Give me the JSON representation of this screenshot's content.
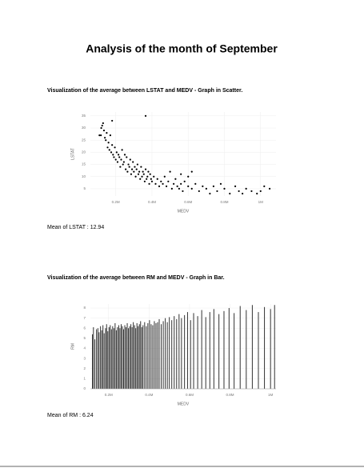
{
  "title": "Analysis of the month of September",
  "sections": [
    {
      "heading": "Visualization of the average between LSTAT and MEDV - Graph in Scatter.",
      "mean": "Mean of LSTAT : 12.94"
    },
    {
      "heading": "Visualization of the average between RM and MEDV - Graph in Bar.",
      "mean": "Mean of RM : 6.24"
    }
  ],
  "chart_data": [
    {
      "type": "scatter",
      "x_label": "MEDV",
      "y_label": "LSTAT",
      "color": "#000000",
      "x": [
        110000,
        120000,
        125000,
        130000,
        135000,
        140000,
        118000,
        145000,
        150000,
        155000,
        160000,
        165000,
        170000,
        175000,
        180000,
        185000,
        190000,
        195000,
        200000,
        205000,
        210000,
        215000,
        220000,
        225000,
        230000,
        235000,
        240000,
        245000,
        250000,
        255000,
        260000,
        265000,
        270000,
        275000,
        280000,
        285000,
        290000,
        295000,
        300000,
        305000,
        310000,
        315000,
        320000,
        325000,
        330000,
        335000,
        340000,
        345000,
        350000,
        355000,
        360000,
        365000,
        370000,
        375000,
        380000,
        385000,
        390000,
        395000,
        400000,
        410000,
        420000,
        430000,
        440000,
        450000,
        460000,
        470000,
        480000,
        490000,
        500000,
        510000,
        520000,
        530000,
        540000,
        550000,
        560000,
        570000,
        580000,
        600000,
        620000,
        640000,
        660000,
        680000,
        700000,
        720000,
        740000,
        760000,
        780000,
        800000,
        830000,
        860000,
        880000,
        900000,
        920000,
        950000,
        980000,
        1000000,
        1020000,
        1050000,
        180000,
        600000,
        620000,
        560000,
        365000
      ],
      "values": [
        27,
        30,
        31,
        32,
        29,
        26,
        27,
        25,
        28,
        22,
        24,
        21,
        27,
        20,
        23,
        19,
        18,
        22,
        17,
        20,
        16,
        19,
        18,
        14,
        17,
        21,
        15,
        16,
        19,
        13,
        18,
        12,
        15,
        14,
        17,
        11,
        13,
        16,
        12,
        14,
        10,
        13,
        15,
        11,
        12,
        9,
        14,
        10,
        12,
        11,
        8,
        13,
        9,
        10,
        12,
        7,
        11,
        9,
        8,
        10,
        7,
        9,
        6,
        8,
        7,
        10,
        6,
        8,
        12,
        5,
        7,
        9,
        6,
        5,
        7,
        4,
        8,
        6,
        5,
        7,
        4,
        6,
        5,
        3,
        6,
        4,
        7,
        5,
        3,
        6,
        4,
        3,
        5,
        4,
        3,
        4,
        6,
        5,
        33,
        10,
        12,
        11,
        35
      ],
      "xlim": [
        60000,
        1085000
      ],
      "ylim": [
        2,
        36.6
      ],
      "xticks": [
        {
          "value": 200000,
          "label": "0.2M"
        },
        {
          "value": 400000,
          "label": "0.4M"
        },
        {
          "value": 600000,
          "label": "0.6M"
        },
        {
          "value": 800000,
          "label": "0.8M"
        },
        {
          "value": 1000000,
          "label": "1M"
        }
      ],
      "yticks": [
        5,
        10,
        15,
        20,
        25,
        30,
        35
      ],
      "grid": true
    },
    {
      "type": "bar",
      "x_label": "MEDV",
      "y_label": "RM",
      "color": "#333333",
      "x": [
        120000,
        125000,
        132000,
        140000,
        147000,
        153000,
        160000,
        166000,
        172000,
        178000,
        185000,
        190000,
        196000,
        202000,
        208000,
        214000,
        220000,
        226000,
        232000,
        238000,
        244000,
        250000,
        256000,
        262000,
        268000,
        274000,
        280000,
        286000,
        292000,
        298000,
        304000,
        310000,
        316000,
        322000,
        328000,
        334000,
        340000,
        346000,
        352000,
        358000,
        364000,
        370000,
        378000,
        386000,
        394000,
        402000,
        410000,
        418000,
        426000,
        434000,
        442000,
        450000,
        460000,
        470000,
        480000,
        490000,
        500000,
        512000,
        524000,
        536000,
        548000,
        560000,
        575000,
        590000,
        605000,
        620000,
        640000,
        660000,
        680000,
        700000,
        720000,
        745000,
        770000,
        795000,
        820000,
        850000,
        880000,
        910000,
        940000,
        970000,
        1000000,
        1020000
      ],
      "values": [
        5.4,
        6.1,
        4.9,
        5.9,
        6.0,
        5.6,
        6.2,
        5.8,
        6.3,
        5.5,
        6.0,
        6.4,
        5.7,
        6.1,
        6.3,
        5.9,
        6.2,
        6.0,
        6.5,
        5.8,
        6.1,
        6.3,
        6.0,
        6.4,
        6.2,
        5.9,
        6.3,
        6.1,
        6.5,
        6.0,
        6.2,
        6.4,
        6.1,
        6.6,
        6.3,
        6.0,
        6.5,
        6.2,
        6.4,
        6.7,
        6.1,
        6.3,
        6.6,
        6.2,
        6.5,
        6.8,
        6.4,
        6.3,
        6.7,
        6.5,
        6.6,
        6.9,
        6.4,
        6.7,
        7.0,
        6.6,
        7.1,
        6.8,
        7.2,
        6.9,
        7.4,
        7.0,
        7.3,
        7.6,
        6.8,
        7.5,
        7.2,
        7.8,
        7.1,
        7.6,
        7.9,
        7.4,
        7.7,
        8.0,
        7.5,
        8.2,
        7.8,
        8.3,
        7.6,
        8.1,
        7.9,
        8.3
      ],
      "xlim": [
        110000,
        1027000
      ],
      "ylim": [
        0,
        8.4
      ],
      "xticks": [
        {
          "value": 200000,
          "label": "0.2M"
        },
        {
          "value": 400000,
          "label": "0.4M"
        },
        {
          "value": 600000,
          "label": "0.6M"
        },
        {
          "value": 800000,
          "label": "0.8M"
        },
        {
          "value": 1000000,
          "label": "1M"
        }
      ],
      "yticks": [
        0,
        1,
        2,
        3,
        4,
        5,
        6,
        7,
        8
      ],
      "grid": true
    }
  ]
}
